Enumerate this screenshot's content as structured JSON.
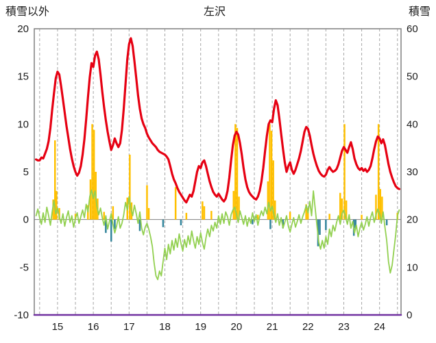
{
  "chart_data": {
    "type": "line",
    "title": "左沢",
    "left_axis": {
      "label": "積雪以外",
      "min": -10,
      "max": 20,
      "ticks": [
        20,
        15,
        10,
        5,
        0,
        -5,
        -10
      ]
    },
    "right_axis": {
      "label": "積雪",
      "min": 0,
      "max": 60,
      "ticks": [
        60,
        50,
        40,
        30,
        20,
        10,
        0
      ]
    },
    "x_axis": {
      "min": 14.35,
      "max": 24.6,
      "ticks": [
        15,
        16,
        17,
        18,
        19,
        20,
        21,
        22,
        23,
        24
      ],
      "tick_labels": [
        "15",
        "16",
        "17",
        "18",
        "19",
        "20",
        "21",
        "22",
        "23",
        "24"
      ],
      "gridlines": [
        14.5,
        15,
        15.5,
        16,
        16.5,
        17,
        17.5,
        18,
        18.5,
        19,
        19.5,
        20,
        20.5,
        21,
        21.5,
        22,
        22.5,
        23,
        23.5,
        24,
        24.5
      ]
    },
    "grid": {
      "vertical_dashed": true,
      "horizontal": false
    },
    "colors": {
      "red": "#e60012",
      "green": "#92d050",
      "orange": "#ffc000",
      "teal": "#31849b",
      "purple": "#7030a0",
      "gridline": "#a6a6a6",
      "zero_line": "#808080",
      "border": "#7f7f7f",
      "text": "#1a1a1a",
      "background": "#ffffff"
    },
    "series": [
      {
        "name": "orange-bars",
        "kind": "bar",
        "axis": "left",
        "color": "#ffc000",
        "points": [
          [
            14.88,
            2.1
          ],
          [
            14.93,
            8.3
          ],
          [
            14.97,
            3.0
          ],
          [
            15.05,
            1.2
          ],
          [
            15.5,
            0.6
          ],
          [
            15.85,
            1.5
          ],
          [
            15.92,
            4.2
          ],
          [
            15.97,
            10.0
          ],
          [
            16.02,
            9.4
          ],
          [
            16.07,
            5.0
          ],
          [
            16.12,
            2.2
          ],
          [
            16.3,
            0.8
          ],
          [
            16.55,
            1.4
          ],
          [
            16.95,
            2.3
          ],
          [
            17.02,
            6.8
          ],
          [
            17.07,
            1.8
          ],
          [
            17.5,
            3.6
          ],
          [
            17.55,
            1.2
          ],
          [
            18.3,
            3.4
          ],
          [
            18.6,
            0.7
          ],
          [
            19.05,
            1.9
          ],
          [
            19.1,
            1.4
          ],
          [
            19.3,
            0.9
          ],
          [
            19.92,
            3.0
          ],
          [
            19.97,
            10.0
          ],
          [
            20.02,
            9.6
          ],
          [
            20.07,
            2.4
          ],
          [
            20.6,
            0.5
          ],
          [
            20.88,
            4.0
          ],
          [
            20.93,
            10.0
          ],
          [
            20.98,
            9.3
          ],
          [
            21.03,
            6.2
          ],
          [
            21.08,
            2.0
          ],
          [
            21.5,
            0.8
          ],
          [
            21.95,
            1.6
          ],
          [
            22.0,
            1.2
          ],
          [
            22.6,
            0.6
          ],
          [
            22.9,
            2.8
          ],
          [
            22.95,
            2.2
          ],
          [
            23.02,
            10.0
          ],
          [
            23.07,
            2.0
          ],
          [
            23.5,
            0.5
          ],
          [
            23.9,
            2.6
          ],
          [
            23.97,
            10.0
          ],
          [
            24.02,
            3.2
          ],
          [
            24.07,
            2.4
          ],
          [
            24.5,
            0.7
          ]
        ]
      },
      {
        "name": "teal-bars",
        "kind": "bar",
        "axis": "left",
        "color": "#31849b",
        "points": [
          [
            16.35,
            -1.4
          ],
          [
            16.5,
            -2.3
          ],
          [
            16.6,
            -1.0
          ],
          [
            17.3,
            -1.2
          ],
          [
            17.95,
            -0.8
          ],
          [
            18.45,
            -0.6
          ],
          [
            20.45,
            -0.5
          ],
          [
            20.95,
            -1.0
          ],
          [
            21.3,
            -0.9
          ],
          [
            22.28,
            -2.8
          ],
          [
            22.33,
            -1.6
          ],
          [
            22.5,
            -1.1
          ],
          [
            23.28,
            -1.7
          ],
          [
            23.33,
            -0.9
          ],
          [
            24.2,
            -0.6
          ]
        ]
      },
      {
        "name": "green-line",
        "kind": "line",
        "axis": "left",
        "color": "#92d050",
        "width": 1.8,
        "x_start": 14.4,
        "x_step": 0.05,
        "values": [
          0.4,
          1.1,
          0.2,
          -0.5,
          0.7,
          -0.3,
          1.3,
          0.4,
          -0.6,
          0.8,
          2.0,
          0.6,
          1.2,
          0.3,
          -0.4,
          0.6,
          -0.7,
          0.2,
          0.9,
          -0.3,
          0.4,
          -0.8,
          0.1,
          0.7,
          -0.4,
          0.3,
          1.0,
          0.2,
          1.6,
          0.8,
          2.4,
          3.1,
          2.2,
          3.0,
          1.4,
          0.5,
          1.2,
          0.2,
          -0.6,
          0.4,
          -1.0,
          -0.2,
          0.6,
          -0.5,
          -1.4,
          -0.7,
          0.3,
          -0.9,
          -0.4,
          0.5,
          1.8,
          1.0,
          2.4,
          1.2,
          0.4,
          1.5,
          0.6,
          -0.4,
          0.8,
          -0.9,
          -1.6,
          -0.8,
          -0.4,
          -1.0,
          -1.8,
          -2.8,
          -4.6,
          -5.9,
          -6.3,
          -5.4,
          -5.9,
          -4.4,
          -3.0,
          -4.2,
          -2.6,
          -3.6,
          -2.2,
          -3.2,
          -2.0,
          -2.9,
          -1.5,
          -2.5,
          -3.3,
          -2.1,
          -2.9,
          -1.7,
          -2.6,
          -1.2,
          -2.2,
          -3.0,
          -1.8,
          -2.6,
          -1.4,
          -2.4,
          -3.1,
          -1.9,
          -1.0,
          -1.8,
          -0.6,
          -1.2,
          -0.3,
          -0.9,
          0.4,
          -0.5,
          0.6,
          -0.4,
          0.8,
          0.3,
          -0.6,
          0.5,
          1.0,
          1.3,
          0.6,
          -0.3,
          0.9,
          0.2,
          -0.5,
          0.4,
          -0.7,
          0.2,
          -0.4,
          0.7,
          -0.2,
          0.5,
          -0.6,
          0.3,
          0.9,
          0.4,
          1.3,
          0.6,
          1.8,
          0.9,
          1.4,
          0.5,
          -0.3,
          0.6,
          -0.6,
          0.2,
          -0.9,
          -0.3,
          0.4,
          -0.7,
          -1.3,
          -0.5,
          0.2,
          -0.8,
          -0.2,
          0.5,
          -0.4,
          0.3,
          0.8,
          1.5,
          0.7,
          1.9,
          0.4,
          3.0,
          1.2,
          -0.6,
          -2.4,
          -3.1,
          -2.2,
          -3.0,
          -1.8,
          -2.6,
          -1.0,
          -1.8,
          -0.6,
          -1.2,
          -0.3,
          0.4,
          -0.5,
          0.6,
          1.0,
          0.3,
          -0.5,
          0.5,
          -0.9,
          -0.2,
          -1.4,
          -0.6,
          -1.8,
          -0.9,
          -0.3,
          -1.1,
          -0.5,
          0.3,
          -0.7,
          0.2,
          0.8,
          -0.3,
          0.5,
          1.1,
          0.6,
          -0.4,
          0.8,
          -0.8,
          -2.2,
          -4.4,
          -5.6,
          -4.8,
          -3.2,
          -1.6,
          0.4,
          1.0
        ]
      },
      {
        "name": "red-line",
        "kind": "line",
        "axis": "left",
        "color": "#e60012",
        "width": 3.2,
        "x_start": 14.4,
        "x_step": 0.05,
        "values": [
          6.3,
          6.2,
          6.2,
          6.5,
          6.4,
          6.9,
          7.4,
          8.2,
          9.6,
          11.5,
          13.2,
          14.8,
          15.5,
          15.2,
          14.0,
          12.6,
          11.2,
          9.8,
          8.6,
          7.4,
          6.4,
          5.6,
          5.0,
          4.6,
          4.9,
          5.6,
          6.8,
          8.4,
          10.5,
          12.8,
          14.9,
          16.4,
          16.0,
          17.2,
          17.6,
          16.8,
          15.2,
          13.4,
          11.8,
          10.4,
          9.2,
          8.2,
          7.3,
          7.8,
          8.5,
          8.0,
          7.6,
          8.0,
          9.4,
          11.6,
          14.2,
          16.8,
          18.4,
          19.0,
          18.2,
          16.6,
          14.8,
          13.0,
          11.6,
          10.6,
          10.0,
          9.6,
          9.0,
          8.6,
          8.3,
          8.0,
          7.8,
          7.6,
          7.3,
          7.1,
          7.0,
          6.9,
          6.8,
          6.6,
          6.3,
          5.6,
          4.8,
          4.2,
          3.8,
          3.3,
          2.9,
          2.6,
          2.3,
          2.0,
          1.8,
          2.2,
          2.6,
          2.4,
          3.0,
          4.0,
          5.0,
          5.6,
          5.4,
          6.0,
          6.2,
          5.6,
          4.8,
          4.0,
          3.4,
          2.9,
          2.6,
          2.4,
          2.7,
          2.4,
          2.1,
          1.9,
          2.2,
          3.0,
          4.4,
          6.2,
          7.8,
          8.8,
          9.2,
          8.9,
          8.0,
          6.8,
          5.4,
          4.2,
          3.4,
          2.9,
          2.6,
          2.4,
          2.2,
          2.1,
          2.4,
          3.0,
          4.0,
          5.4,
          7.2,
          8.8,
          10.0,
          10.4,
          10.2,
          11.6,
          12.5,
          12.0,
          10.6,
          9.0,
          7.4,
          6.0,
          5.0,
          5.6,
          6.0,
          5.2,
          4.8,
          5.2,
          5.8,
          6.4,
          7.2,
          8.2,
          9.2,
          9.7,
          9.5,
          8.8,
          7.8,
          6.9,
          6.2,
          5.6,
          5.1,
          4.8,
          4.6,
          4.5,
          4.7,
          5.2,
          5.5,
          5.2,
          5.0,
          5.1,
          5.3,
          5.8,
          6.5,
          7.2,
          7.6,
          7.3,
          7.0,
          7.6,
          8.1,
          7.4,
          6.4,
          5.8,
          5.4,
          5.2,
          5.4,
          5.1,
          5.3,
          5.0,
          5.2,
          5.6,
          6.4,
          7.4,
          8.2,
          8.7,
          8.5,
          8.0,
          8.4,
          7.8,
          6.8,
          5.8,
          5.0,
          4.4,
          3.9,
          3.5,
          3.3,
          3.2
        ]
      },
      {
        "name": "purple-line",
        "kind": "line",
        "axis": "left",
        "color": "#7030a0",
        "width": 2.5,
        "points": [
          [
            14.35,
            -10
          ],
          [
            24.6,
            -10
          ]
        ]
      }
    ]
  }
}
